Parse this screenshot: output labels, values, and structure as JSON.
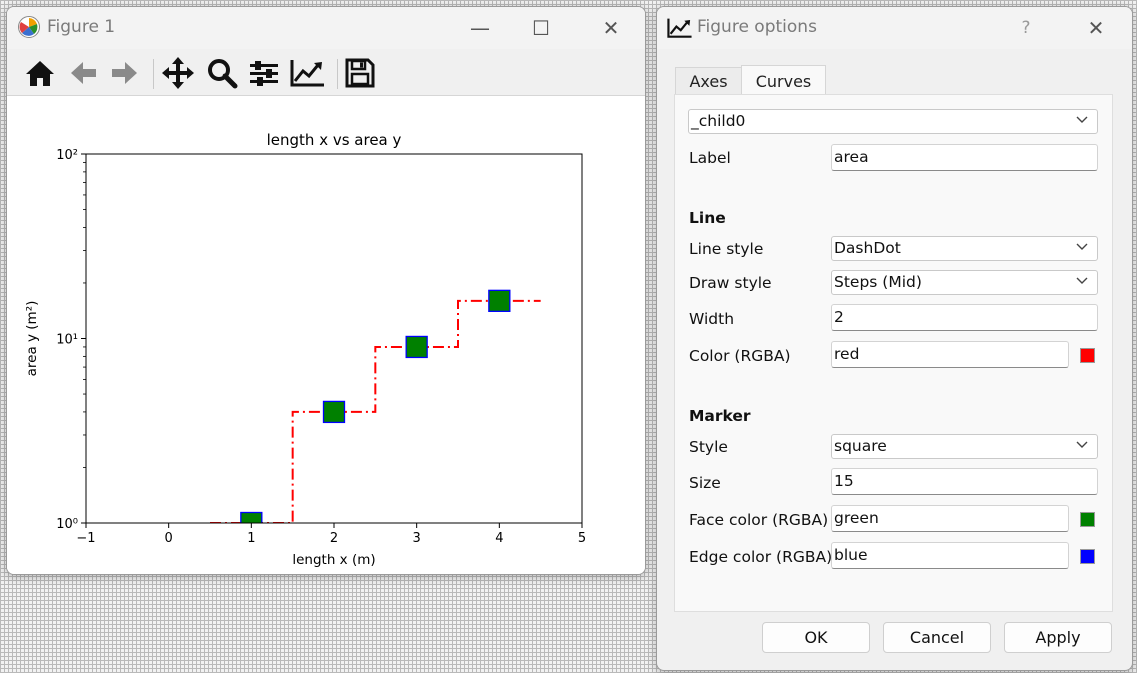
{
  "figure_window": {
    "title": "Figure 1",
    "controls": {
      "minimize": "—",
      "maximize": "☐",
      "close": "✕"
    },
    "toolbar": [
      "home-icon",
      "back-icon",
      "forward-icon",
      "pan-icon",
      "zoom-icon",
      "configure-subplots-icon",
      "edit-axis-icon",
      "save-icon"
    ]
  },
  "chart_data": {
    "type": "line",
    "title": "length x vs area y",
    "xlabel": "length x (m)",
    "ylabel": "area y (m²)",
    "xlim": [
      -1,
      5
    ],
    "ylim": [
      1,
      100
    ],
    "yscale": "log",
    "xticks": [
      -1,
      0,
      1,
      2,
      3,
      4,
      5
    ],
    "xtick_labels": [
      "−1",
      "0",
      "1",
      "2",
      "3",
      "4",
      "5"
    ],
    "yticks": [
      1,
      10,
      100
    ],
    "ytick_labels": [
      "10⁰",
      "10¹",
      "10²"
    ],
    "series": [
      {
        "name": "area",
        "x": [
          0,
          1,
          2,
          3,
          4
        ],
        "y": [
          0,
          1,
          4,
          9,
          16
        ],
        "linestyle": "dashdot",
        "drawstyle": "steps-mid",
        "linewidth": 2,
        "color": "#ff0000",
        "marker": "square",
        "markersize": 15,
        "markerfacecolor": "#008000",
        "markeredgecolor": "#0000ff"
      }
    ],
    "grid": false
  },
  "options_window": {
    "title": "Figure options",
    "help": "?",
    "close": "✕",
    "tabs": [
      "Axes",
      "Curves"
    ],
    "active_tab": "Curves",
    "curve_select": "_child0",
    "label_label": "Label",
    "label_value": "area",
    "line_section": "Line",
    "line_style_label": "Line style",
    "line_style_value": "DashDot",
    "draw_style_label": "Draw style",
    "draw_style_value": "Steps (Mid)",
    "width_label": "Width",
    "width_value": "2",
    "color_label": "Color (RGBA)",
    "color_value": "red",
    "color_swatch": "#ff0000",
    "marker_section": "Marker",
    "marker_style_label": "Style",
    "marker_style_value": "square",
    "size_label": "Size",
    "size_value": "15",
    "face_color_label": "Face color (RGBA)",
    "face_color_value": "green",
    "face_swatch": "#008000",
    "edge_color_label": "Edge color (RGBA)",
    "edge_color_value": "blue",
    "edge_swatch": "#0000ff",
    "ok_label": "OK",
    "cancel_label": "Cancel",
    "apply_label": "Apply"
  }
}
